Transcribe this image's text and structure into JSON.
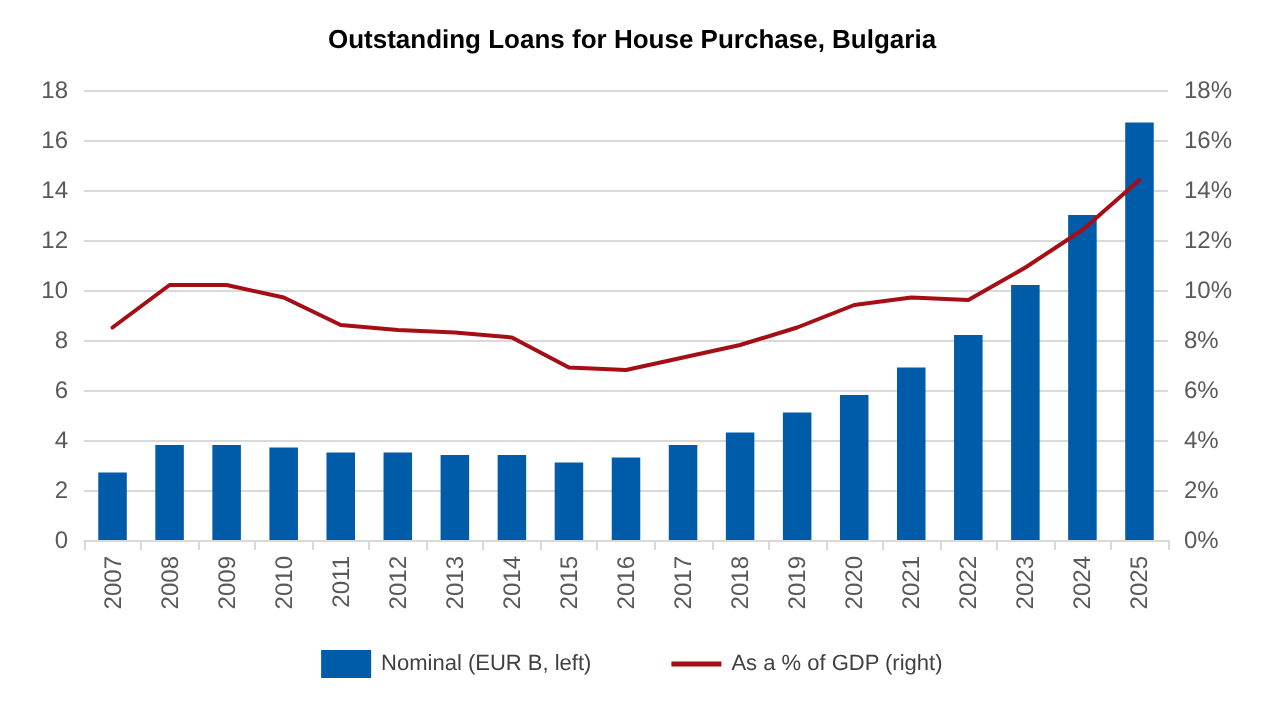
{
  "chart_data": {
    "type": "bar",
    "title": "Outstanding Loans for House Purchase, Bulgaria",
    "categories": [
      "2007",
      "2008",
      "2009",
      "2010",
      "2011",
      "2012",
      "2013",
      "2014",
      "2015",
      "2016",
      "2017",
      "2018",
      "2019",
      "2020",
      "2021",
      "2022",
      "2023",
      "2024",
      "2025"
    ],
    "series": [
      {
        "name": "Nominal (EUR B, left)",
        "color": "#005ca8",
        "values": [
          2.7,
          3.8,
          3.8,
          3.7,
          3.5,
          3.5,
          3.4,
          3.4,
          3.1,
          3.3,
          3.8,
          4.3,
          5.1,
          5.8,
          6.9,
          8.2,
          10.2,
          13.0,
          16.7
        ]
      },
      {
        "name": "As a % of GDP (right)",
        "type": "line",
        "axis": "y2",
        "color": "#a50e15",
        "values": [
          8.5,
          10.2,
          10.2,
          9.7,
          8.6,
          8.4,
          8.3,
          8.1,
          6.9,
          6.8,
          7.3,
          7.8,
          8.5,
          9.4,
          9.7,
          9.6,
          10.9,
          12.4,
          14.4
        ]
      }
    ],
    "ylim": [
      0,
      18
    ],
    "yticks": [
      0,
      2,
      4,
      6,
      8,
      10,
      12,
      14,
      16,
      18
    ],
    "y2lim": [
      0,
      18
    ],
    "y2ticks": [
      {
        "value": 0,
        "label": "0%"
      },
      {
        "value": 2,
        "label": "2%"
      },
      {
        "value": 4,
        "label": "4%"
      },
      {
        "value": 6,
        "label": "6%"
      },
      {
        "value": 8,
        "label": "8%"
      },
      {
        "value": 10,
        "label": "10%"
      },
      {
        "value": 12,
        "label": "12%"
      },
      {
        "value": 14,
        "label": "14%"
      },
      {
        "value": 16,
        "label": "16%"
      },
      {
        "value": 18,
        "label": "18%"
      }
    ],
    "grid": "y",
    "legend": "bottom",
    "marker": "none",
    "line_style": "solid"
  }
}
